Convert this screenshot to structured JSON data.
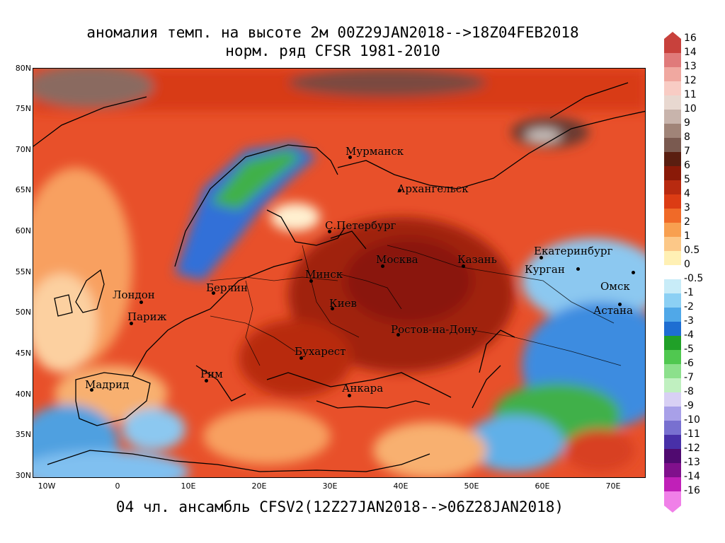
{
  "title": {
    "line1": "аномалия темп. на высоте 2м 00Z29JAN2018-->18Z04FEB2018",
    "line2": "норм. ряд CFSR 1981-2010"
  },
  "footer": "04 чл. ансамбль CFSV2(12Z27JAN2018-->06Z28JAN2018)",
  "lat_labels": [
    "80N",
    "75N",
    "70N",
    "65N",
    "60N",
    "55N",
    "50N",
    "45N",
    "40N",
    "35N",
    "30N"
  ],
  "lon_labels": [
    "10W",
    "0",
    "10E",
    "20E",
    "30E",
    "40E",
    "50E",
    "60E",
    "70E"
  ],
  "cities": [
    {
      "name": "Мурманск"
    },
    {
      "name": "Архангельск"
    },
    {
      "name": "С.Петербург"
    },
    {
      "name": "Москва"
    },
    {
      "name": "Казань"
    },
    {
      "name": "Екатеринбург"
    },
    {
      "name": "Курган"
    },
    {
      "name": "Омск"
    },
    {
      "name": "Астана"
    },
    {
      "name": "Минск"
    },
    {
      "name": "Берлин"
    },
    {
      "name": "Лондон"
    },
    {
      "name": "Париж"
    },
    {
      "name": "Киев"
    },
    {
      "name": "Ростов-на-Дону"
    },
    {
      "name": "Бухарест"
    },
    {
      "name": "Рим"
    },
    {
      "name": "Мадрид"
    },
    {
      "name": "Анкара"
    }
  ],
  "colorbar": {
    "labels": [
      "16",
      "14",
      "13",
      "12",
      "11",
      "10",
      "9",
      "8",
      "7",
      "6",
      "5",
      "4",
      "3",
      "2",
      "1",
      "0.5",
      "0",
      "-0.5",
      "-1",
      "-2",
      "-3",
      "-4",
      "-5",
      "-6",
      "-7",
      "-8",
      "-9",
      "-10",
      "-11",
      "-12",
      "-13",
      "-14",
      "-16"
    ],
    "colors": [
      "#c8413c",
      "#e07a7a",
      "#f0a8a0",
      "#f8ccc4",
      "#e8d8d0",
      "#c8b4ac",
      "#a08478",
      "#7a5a50",
      "#5a1e10",
      "#8a1a08",
      "#b82a10",
      "#dc3c14",
      "#f06a28",
      "#f8a050",
      "#fcc888",
      "#fff0b4",
      "#ffffff",
      "#c8ecf8",
      "#8cd0f4",
      "#50a8e8",
      "#1e6ed2",
      "#20a028",
      "#50c850",
      "#8ce08c",
      "#c0f0c0",
      "#d8d0f4",
      "#a8a0e8",
      "#7870d0",
      "#4830a8",
      "#500a70",
      "#80108c",
      "#c020b8",
      "#f080e8"
    ]
  }
}
